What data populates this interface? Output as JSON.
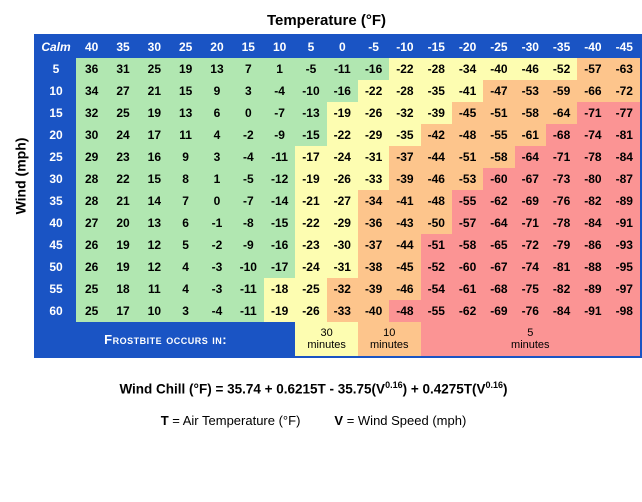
{
  "title_top": "Temperature (°F)",
  "title_left": "Wind (mph)",
  "calm_label": "Calm",
  "temps": [
    40,
    35,
    30,
    25,
    20,
    15,
    10,
    5,
    0,
    -5,
    -10,
    -15,
    -20,
    -25,
    -30,
    -35,
    -40,
    -45
  ],
  "winds": [
    5,
    10,
    15,
    20,
    25,
    30,
    35,
    40,
    45,
    50,
    55,
    60
  ],
  "colors": {
    "header_bg": "#1a54c4",
    "header_fg": "#ffffff",
    "zone_none": "#b1e7b1",
    "zone_30": "#fdfdb1",
    "zone_10": "#fdc58c",
    "zone_5": "#fb9494"
  },
  "cells": [
    [
      [
        36,
        0
      ],
      [
        31,
        0
      ],
      [
        25,
        0
      ],
      [
        19,
        0
      ],
      [
        13,
        0
      ],
      [
        7,
        0
      ],
      [
        1,
        0
      ],
      [
        -5,
        0
      ],
      [
        -11,
        0
      ],
      [
        -16,
        0
      ],
      [
        -22,
        1
      ],
      [
        -28,
        1
      ],
      [
        -34,
        1
      ],
      [
        -40,
        1
      ],
      [
        -46,
        1
      ],
      [
        -52,
        1
      ],
      [
        -57,
        2
      ],
      [
        -63,
        2
      ]
    ],
    [
      [
        34,
        0
      ],
      [
        27,
        0
      ],
      [
        21,
        0
      ],
      [
        15,
        0
      ],
      [
        9,
        0
      ],
      [
        3,
        0
      ],
      [
        -4,
        0
      ],
      [
        -10,
        0
      ],
      [
        -16,
        0
      ],
      [
        -22,
        1
      ],
      [
        -28,
        1
      ],
      [
        -35,
        1
      ],
      [
        -41,
        1
      ],
      [
        -47,
        2
      ],
      [
        -53,
        2
      ],
      [
        -59,
        2
      ],
      [
        -66,
        2
      ],
      [
        -72,
        2
      ]
    ],
    [
      [
        32,
        0
      ],
      [
        25,
        0
      ],
      [
        19,
        0
      ],
      [
        13,
        0
      ],
      [
        6,
        0
      ],
      [
        0,
        0
      ],
      [
        -7,
        0
      ],
      [
        -13,
        0
      ],
      [
        -19,
        1
      ],
      [
        -26,
        1
      ],
      [
        -32,
        1
      ],
      [
        -39,
        1
      ],
      [
        -45,
        2
      ],
      [
        -51,
        2
      ],
      [
        -58,
        2
      ],
      [
        -64,
        2
      ],
      [
        -71,
        3
      ],
      [
        -77,
        3
      ]
    ],
    [
      [
        30,
        0
      ],
      [
        24,
        0
      ],
      [
        17,
        0
      ],
      [
        11,
        0
      ],
      [
        4,
        0
      ],
      [
        -2,
        0
      ],
      [
        -9,
        0
      ],
      [
        -15,
        0
      ],
      [
        -22,
        1
      ],
      [
        -29,
        1
      ],
      [
        -35,
        1
      ],
      [
        -42,
        2
      ],
      [
        -48,
        2
      ],
      [
        -55,
        2
      ],
      [
        -61,
        2
      ],
      [
        -68,
        3
      ],
      [
        -74,
        3
      ],
      [
        -81,
        3
      ]
    ],
    [
      [
        29,
        0
      ],
      [
        23,
        0
      ],
      [
        16,
        0
      ],
      [
        9,
        0
      ],
      [
        3,
        0
      ],
      [
        -4,
        0
      ],
      [
        -11,
        0
      ],
      [
        -17,
        1
      ],
      [
        -24,
        1
      ],
      [
        -31,
        1
      ],
      [
        -37,
        2
      ],
      [
        -44,
        2
      ],
      [
        -51,
        2
      ],
      [
        -58,
        2
      ],
      [
        -64,
        3
      ],
      [
        -71,
        3
      ],
      [
        -78,
        3
      ],
      [
        -84,
        3
      ]
    ],
    [
      [
        28,
        0
      ],
      [
        22,
        0
      ],
      [
        15,
        0
      ],
      [
        8,
        0
      ],
      [
        1,
        0
      ],
      [
        -5,
        0
      ],
      [
        -12,
        0
      ],
      [
        -19,
        1
      ],
      [
        -26,
        1
      ],
      [
        -33,
        1
      ],
      [
        -39,
        2
      ],
      [
        -46,
        2
      ],
      [
        -53,
        2
      ],
      [
        -60,
        3
      ],
      [
        -67,
        3
      ],
      [
        -73,
        3
      ],
      [
        -80,
        3
      ],
      [
        -87,
        3
      ]
    ],
    [
      [
        28,
        0
      ],
      [
        21,
        0
      ],
      [
        14,
        0
      ],
      [
        7,
        0
      ],
      [
        0,
        0
      ],
      [
        -7,
        0
      ],
      [
        -14,
        0
      ],
      [
        -21,
        1
      ],
      [
        -27,
        1
      ],
      [
        -34,
        2
      ],
      [
        -41,
        2
      ],
      [
        -48,
        2
      ],
      [
        -55,
        3
      ],
      [
        -62,
        3
      ],
      [
        -69,
        3
      ],
      [
        -76,
        3
      ],
      [
        -82,
        3
      ],
      [
        -89,
        3
      ]
    ],
    [
      [
        27,
        0
      ],
      [
        20,
        0
      ],
      [
        13,
        0
      ],
      [
        6,
        0
      ],
      [
        -1,
        0
      ],
      [
        -8,
        0
      ],
      [
        -15,
        0
      ],
      [
        -22,
        1
      ],
      [
        -29,
        1
      ],
      [
        -36,
        2
      ],
      [
        -43,
        2
      ],
      [
        -50,
        2
      ],
      [
        -57,
        3
      ],
      [
        -64,
        3
      ],
      [
        -71,
        3
      ],
      [
        -78,
        3
      ],
      [
        -84,
        3
      ],
      [
        -91,
        3
      ]
    ],
    [
      [
        26,
        0
      ],
      [
        19,
        0
      ],
      [
        12,
        0
      ],
      [
        5,
        0
      ],
      [
        -2,
        0
      ],
      [
        -9,
        0
      ],
      [
        -16,
        0
      ],
      [
        -23,
        1
      ],
      [
        -30,
        1
      ],
      [
        -37,
        2
      ],
      [
        -44,
        2
      ],
      [
        -51,
        3
      ],
      [
        -58,
        3
      ],
      [
        -65,
        3
      ],
      [
        -72,
        3
      ],
      [
        -79,
        3
      ],
      [
        -86,
        3
      ],
      [
        -93,
        3
      ]
    ],
    [
      [
        26,
        0
      ],
      [
        19,
        0
      ],
      [
        12,
        0
      ],
      [
        4,
        0
      ],
      [
        -3,
        0
      ],
      [
        -10,
        0
      ],
      [
        -17,
        0
      ],
      [
        -24,
        1
      ],
      [
        -31,
        1
      ],
      [
        -38,
        2
      ],
      [
        -45,
        2
      ],
      [
        -52,
        3
      ],
      [
        -60,
        3
      ],
      [
        -67,
        3
      ],
      [
        -74,
        3
      ],
      [
        -81,
        3
      ],
      [
        -88,
        3
      ],
      [
        -95,
        3
      ]
    ],
    [
      [
        25,
        0
      ],
      [
        18,
        0
      ],
      [
        11,
        0
      ],
      [
        4,
        0
      ],
      [
        -3,
        0
      ],
      [
        -11,
        0
      ],
      [
        -18,
        1
      ],
      [
        -25,
        1
      ],
      [
        -32,
        2
      ],
      [
        -39,
        2
      ],
      [
        -46,
        2
      ],
      [
        -54,
        3
      ],
      [
        -61,
        3
      ],
      [
        -68,
        3
      ],
      [
        -75,
        3
      ],
      [
        -82,
        3
      ],
      [
        -89,
        3
      ],
      [
        -97,
        3
      ]
    ],
    [
      [
        25,
        0
      ],
      [
        17,
        0
      ],
      [
        10,
        0
      ],
      [
        3,
        0
      ],
      [
        -4,
        0
      ],
      [
        -11,
        0
      ],
      [
        -19,
        1
      ],
      [
        -26,
        1
      ],
      [
        -33,
        2
      ],
      [
        -40,
        2
      ],
      [
        -48,
        3
      ],
      [
        -55,
        3
      ],
      [
        -62,
        3
      ],
      [
        -69,
        3
      ],
      [
        -76,
        3
      ],
      [
        -84,
        3
      ],
      [
        -91,
        3
      ],
      [
        -98,
        3
      ]
    ]
  ],
  "frostbite": {
    "label": "Frostbite occurs in:",
    "bands": [
      {
        "span": 7,
        "text": ""
      },
      {
        "span": 2,
        "text": "30 minutes",
        "zone": 1
      },
      {
        "span": 2,
        "text": "10 minutes",
        "zone": 2
      },
      {
        "span": 7,
        "text": "5 minutes",
        "zone": 3
      }
    ]
  },
  "formula_html": "Wind Chill (°F) = 35.74 + 0.6215T - 35.75(V<sup>0.16</sup>) + 0.4275T(V<sup>0.16</sup>)",
  "legend": {
    "t_sym": "T",
    "t_txt": "= Air Temperature (°F)",
    "v_sym": "V",
    "v_txt": "= Wind Speed (mph)"
  }
}
